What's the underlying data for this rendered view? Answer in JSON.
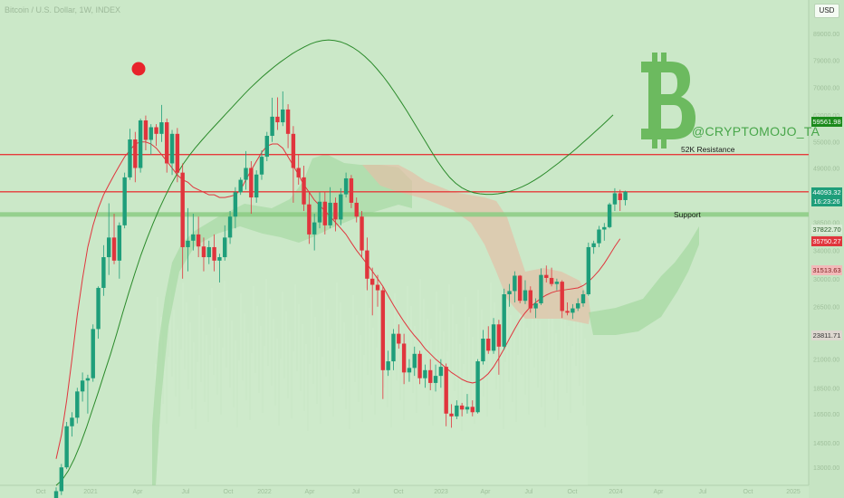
{
  "symbol_header": "Bitcoin / U.S. Dollar, 1W, INDEX",
  "currency_button": "USD",
  "brand_handle": "@CRYPTOMOJO_TA",
  "annotations": {
    "resistance": "52K Resistance",
    "support": "Support"
  },
  "colors": {
    "background": "#cbe8c8",
    "up": "#1e9e7a",
    "down": "#e0353d",
    "resistance": "#e63b3b",
    "support": "#8ccb84",
    "upper_band": "#2a8a2a",
    "ma": "#e0353d",
    "cloud_green": "#9fd69a",
    "cloud_red": "#e2c1a6",
    "bitcoin_logo": "#6cba5f",
    "signal_dot": "#e8232b"
  },
  "bitcoin_logo_icon": "bitcoin-symbol",
  "price_labels": [
    {
      "text": "59561.98",
      "bg": "#1b8a1b",
      "fg": "#ffffff"
    },
    {
      "text": "44093.32",
      "bg": "#1e9e7a",
      "fg": "#ffffff"
    },
    {
      "text": "16:23:26",
      "bg": "#1e9e7a",
      "fg": "#ffffff"
    },
    {
      "text": "37822.70",
      "bg": "#d8ecd5",
      "fg": "#2a5a2a"
    },
    {
      "text": "35750.27",
      "bg": "#e0353d",
      "fg": "#ffffff"
    },
    {
      "text": "31513.63",
      "bg": "#f2b9b9",
      "fg": "#7a1f1f"
    },
    {
      "text": "23811.71",
      "bg": "#ddd7cf",
      "fg": "#333333"
    }
  ],
  "chart_data": {
    "type": "candlestick",
    "title": "Bitcoin / U.S. Dollar, 1W, INDEX",
    "y_scale": "log",
    "ylim": [
      12000,
      95000
    ],
    "y_ticks": [
      13000,
      14500,
      16500,
      18500,
      21000,
      23500,
      26500,
      30000,
      34000,
      38500,
      43500,
      49000,
      55000,
      62000,
      70000,
      79000,
      89000
    ],
    "x_ticks": [
      "Oct",
      "2021",
      "Apr",
      "Jul",
      "Oct",
      "2022",
      "Apr",
      "Jul",
      "Oct",
      "2023",
      "Apr",
      "Jul",
      "Oct",
      "2024",
      "Apr",
      "Jul",
      "Oct",
      "2025"
    ],
    "x_range": [
      "2020-07",
      "2025-03"
    ],
    "candles": [
      [
        10800,
        11900,
        10500,
        11700
      ],
      [
        11700,
        13200,
        11500,
        13000
      ],
      [
        13000,
        15900,
        12900,
        15600
      ],
      [
        15600,
        16600,
        14900,
        16200
      ],
      [
        16200,
        18500,
        15800,
        18200
      ],
      [
        18200,
        19800,
        17400,
        19100
      ],
      [
        19100,
        19600,
        16500,
        19300
      ],
      [
        19300,
        24500,
        19000,
        24000
      ],
      [
        24000,
        29000,
        23000,
        28800
      ],
      [
        28800,
        34800,
        27800,
        33000
      ],
      [
        33000,
        41900,
        30500,
        36000
      ],
      [
        36000,
        40000,
        32000,
        32500
      ],
      [
        32500,
        38500,
        30000,
        38000
      ],
      [
        38000,
        48000,
        37500,
        47000
      ],
      [
        47000,
        58300,
        46500,
        55600
      ],
      [
        55600,
        57500,
        46000,
        49000
      ],
      [
        49000,
        61000,
        48000,
        60500
      ],
      [
        60500,
        61800,
        53000,
        55500
      ],
      [
        55500,
        59500,
        52000,
        58700
      ],
      [
        58700,
        59500,
        54000,
        57000
      ],
      [
        57000,
        64800,
        55000,
        60000
      ],
      [
        60000,
        61000,
        48000,
        50000
      ],
      [
        50000,
        58000,
        47500,
        57000
      ],
      [
        57000,
        58500,
        46000,
        48000
      ],
      [
        48000,
        50000,
        30000,
        34500
      ],
      [
        34500,
        41000,
        31000,
        35500
      ],
      [
        35500,
        40000,
        34000,
        36500
      ],
      [
        36500,
        39500,
        33000,
        34600
      ],
      [
        34600,
        36000,
        31000,
        33000
      ],
      [
        33000,
        35500,
        32000,
        34500
      ],
      [
        34500,
        36500,
        31000,
        32500
      ],
      [
        32500,
        33500,
        29500,
        33000
      ],
      [
        33000,
        38000,
        32500,
        36000
      ],
      [
        36000,
        40500,
        35000,
        39500
      ],
      [
        39500,
        45000,
        37500,
        44000
      ],
      [
        44000,
        47000,
        43500,
        46500
      ],
      [
        46500,
        52800,
        44500,
        49000
      ],
      [
        49000,
        50500,
        40000,
        43000
      ],
      [
        43000,
        48500,
        42000,
        47600
      ],
      [
        47600,
        53000,
        46500,
        51500
      ],
      [
        51500,
        57500,
        50500,
        56500
      ],
      [
        56500,
        66900,
        55000,
        61500
      ],
      [
        61500,
        67000,
        58000,
        60000
      ],
      [
        60000,
        68800,
        59000,
        63500
      ],
      [
        63500,
        65000,
        53500,
        57000
      ],
      [
        57000,
        59000,
        42000,
        49000
      ],
      [
        49000,
        52000,
        45500,
        47000
      ],
      [
        47000,
        49500,
        40500,
        41700
      ],
      [
        41700,
        44000,
        35000,
        36500
      ],
      [
        36500,
        40000,
        34000,
        38500
      ],
      [
        38500,
        44000,
        37500,
        42200
      ],
      [
        42200,
        44000,
        36500,
        38000
      ],
      [
        38000,
        45000,
        37500,
        42000
      ],
      [
        42000,
        43000,
        37000,
        39000
      ],
      [
        39000,
        44800,
        38000,
        43600
      ],
      [
        43600,
        48000,
        43000,
        46800
      ],
      [
        46800,
        47500,
        41000,
        42000
      ],
      [
        42000,
        43000,
        38500,
        39500
      ],
      [
        39500,
        40500,
        33000,
        34000
      ],
      [
        34000,
        36000,
        28500,
        30000
      ],
      [
        30000,
        31500,
        25500,
        29200
      ],
      [
        29200,
        30500,
        26500,
        28500
      ],
      [
        28500,
        29000,
        17600,
        20000
      ],
      [
        20000,
        21800,
        19500,
        20800
      ],
      [
        20800,
        24000,
        20000,
        23500
      ],
      [
        23500,
        24500,
        22000,
        22500
      ],
      [
        22500,
        23500,
        18800,
        19800
      ],
      [
        19800,
        21000,
        19000,
        20200
      ],
      [
        20200,
        22200,
        19500,
        21500
      ],
      [
        21500,
        21800,
        18800,
        19300
      ],
      [
        19300,
        20500,
        18500,
        20000
      ],
      [
        20000,
        21000,
        18300,
        18900
      ],
      [
        18900,
        20500,
        18200,
        19500
      ],
      [
        19500,
        21000,
        18500,
        20300
      ],
      [
        20300,
        20600,
        15600,
        16500
      ],
      [
        16500,
        17200,
        15500,
        16300
      ],
      [
        16300,
        17500,
        16100,
        17100
      ],
      [
        17100,
        17300,
        16300,
        16800
      ],
      [
        16800,
        18000,
        16500,
        17000
      ],
      [
        17000,
        17500,
        16300,
        16600
      ],
      [
        16600,
        21000,
        16500,
        20800
      ],
      [
        20800,
        23900,
        20500,
        23000
      ],
      [
        23000,
        24300,
        21500,
        21800
      ],
      [
        21800,
        25200,
        21500,
        24500
      ],
      [
        24500,
        25000,
        19600,
        22200
      ],
      [
        22200,
        28700,
        21900,
        28000
      ],
      [
        28000,
        29300,
        26500,
        28400
      ],
      [
        28400,
        31000,
        27000,
        30400
      ],
      [
        30400,
        30500,
        26900,
        27200
      ],
      [
        27200,
        29800,
        26800,
        28500
      ],
      [
        28500,
        29000,
        25800,
        26300
      ],
      [
        26300,
        27500,
        25200,
        26900
      ],
      [
        26900,
        31400,
        26700,
        30500
      ],
      [
        30500,
        31800,
        29500,
        30100
      ],
      [
        30100,
        31500,
        29000,
        29300
      ],
      [
        29300,
        30000,
        28500,
        29600
      ],
      [
        29600,
        29800,
        25200,
        26000
      ],
      [
        26000,
        27000,
        25500,
        25800
      ],
      [
        25800,
        26800,
        25100,
        26300
      ],
      [
        26300,
        27500,
        26000,
        26900
      ],
      [
        26900,
        28500,
        26500,
        28000
      ],
      [
        28000,
        35200,
        27800,
        34500
      ],
      [
        34500,
        35500,
        33500,
        35100
      ],
      [
        35100,
        37900,
        34500,
        37300
      ],
      [
        37300,
        38400,
        35500,
        37700
      ],
      [
        37700,
        42000,
        37500,
        41700
      ],
      [
        41700,
        44800,
        40500,
        43800
      ],
      [
        43800,
        44500,
        40500,
        42500
      ],
      [
        42500,
        44300,
        41500,
        44100
      ]
    ],
    "series": [
      {
        "name": "",
        "type": "line",
        "values": [
          13500,
          15000,
          17500,
          21000,
          25500,
          30000,
          34500,
          38000,
          41000,
          43500,
          45500,
          47500,
          49500,
          51500,
          53000,
          54500,
          55000,
          55000,
          54500,
          53500,
          52000,
          50500,
          49000,
          47500,
          46500,
          46000,
          45000,
          44500,
          44000,
          43500,
          43500,
          43000,
          43000,
          43200,
          43500,
          44500,
          46500,
          48500,
          50500,
          52500,
          54000,
          54500,
          54500,
          53500,
          51500,
          49500,
          47500,
          45500,
          44000,
          42500,
          41500,
          40500,
          39500,
          38500,
          37500,
          36500,
          35200,
          34000,
          33000,
          32000,
          31000,
          30000,
          29000,
          27800,
          26700,
          25700,
          24800,
          24000,
          23300,
          22700,
          22000,
          21500,
          21000,
          20600,
          20200,
          19800,
          19500,
          19200,
          19000,
          18900,
          19000,
          19300,
          19700,
          20300,
          21100,
          22000,
          23000,
          24000,
          25000,
          25800,
          26500,
          27000,
          27500,
          27900,
          28200,
          28400,
          28500,
          28600,
          28700,
          28800,
          29100,
          29600,
          30300,
          31100,
          32100,
          33300,
          34600,
          35800
        ]
      },
      {
        "name": "",
        "type": "line",
        "values": [
          12000,
          12300,
          12800,
          13500,
          14400,
          15500,
          16800,
          18200,
          19800,
          21500,
          23500,
          25800,
          28200,
          30700,
          33300,
          35800,
          38300,
          40800,
          43200,
          45600,
          47800,
          49900,
          51800,
          53600,
          55300,
          57000,
          58700,
          60400,
          62200,
          64000,
          65900,
          67800,
          69700,
          71500,
          73300,
          75000,
          76700,
          78300,
          79800,
          81300,
          82600,
          83800,
          84900,
          85700,
          86200,
          86400,
          86200,
          85700,
          84800,
          83600,
          82100,
          80300,
          78300,
          76000,
          73600,
          71000,
          68300,
          65600,
          62900,
          60200,
          57600,
          55100,
          52700,
          50500,
          48600,
          47000,
          45800,
          44900,
          44300,
          43900,
          43700,
          43600,
          43600,
          43700,
          43900,
          44200,
          44600,
          45100,
          45700,
          46400,
          47200,
          48100,
          49100,
          50100,
          51200,
          52300,
          53500,
          54800,
          56100,
          57500,
          58900,
          60400,
          62000
        ]
      }
    ],
    "ichimoku_cloud": true,
    "horizontal_lines": [
      {
        "label": "52K Resistance",
        "value": 52000
      },
      {
        "value": 44093
      },
      {
        "label": "Support",
        "value": 39800
      }
    ],
    "last_price": 44093.32,
    "countdown": "16:23:26"
  }
}
